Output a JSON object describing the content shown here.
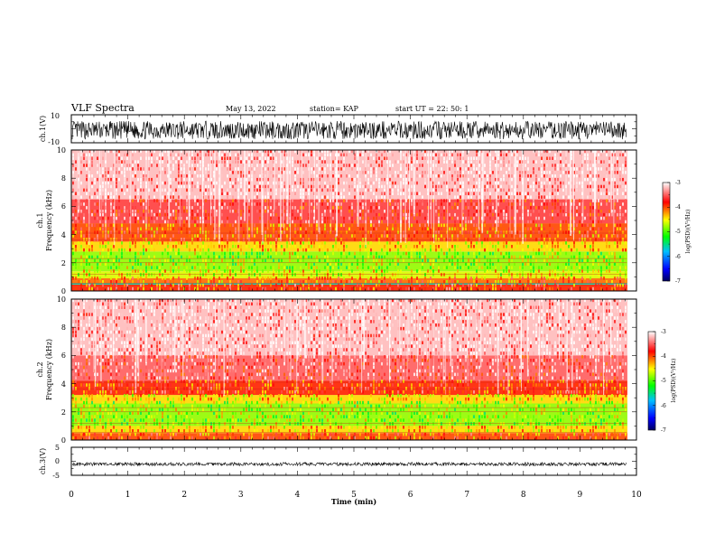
{
  "header": {
    "title": "VLF Spectra",
    "date": "May 13, 2022",
    "station": "station= KAP",
    "start": "start  UT =   22: 50: 1"
  },
  "chart_data": [
    {
      "type": "line",
      "name": "ch1-waveform",
      "ylabel": "ch.1(V)",
      "ylim": [
        -10,
        10
      ],
      "yticks": [
        "10",
        "-10"
      ],
      "xlim": [
        0,
        10
      ],
      "x_end": 9.83,
      "amplitude": 6.5,
      "offset": -1.0
    },
    {
      "type": "heatmap",
      "name": "ch1-spectrogram",
      "ylabel": "ch.1",
      "ylabel2": "Frequency (kHz)",
      "ylim": [
        0,
        10
      ],
      "yticks": [
        "0",
        "2",
        "4",
        "6",
        "8",
        "10"
      ],
      "xlim": [
        0,
        10
      ],
      "x_end": 9.83,
      "bands": [
        {
          "from": 0.0,
          "to": 0.45,
          "level": -3.9
        },
        {
          "from": 0.45,
          "to": 0.55,
          "level": -5.6
        },
        {
          "from": 0.55,
          "to": 0.9,
          "level": -4.1
        },
        {
          "from": 0.9,
          "to": 1.4,
          "level": -4.6
        },
        {
          "from": 1.4,
          "to": 2.8,
          "level": -4.8
        },
        {
          "from": 2.8,
          "to": 3.5,
          "level": -4.4
        },
        {
          "from": 3.5,
          "to": 4.8,
          "level": -4.0
        },
        {
          "from": 4.8,
          "to": 6.5,
          "level": -3.6
        },
        {
          "from": 6.5,
          "to": 10.0,
          "level": -3.2
        }
      ]
    },
    {
      "type": "heatmap",
      "name": "ch2-spectrogram",
      "ylabel": "ch.2",
      "ylabel2": "Frequency (kHz)",
      "ylim": [
        0,
        10
      ],
      "yticks": [
        "0",
        "2",
        "4",
        "6",
        "8",
        "10"
      ],
      "xlim": [
        0,
        10
      ],
      "x_end": 9.83,
      "bands": [
        {
          "from": 0.0,
          "to": 0.5,
          "level": -4.0
        },
        {
          "from": 0.5,
          "to": 1.0,
          "level": -4.4
        },
        {
          "from": 1.0,
          "to": 2.6,
          "level": -4.8
        },
        {
          "from": 2.6,
          "to": 3.2,
          "level": -4.4
        },
        {
          "from": 3.2,
          "to": 4.2,
          "level": -3.9
        },
        {
          "from": 4.2,
          "to": 6.0,
          "level": -3.5
        },
        {
          "from": 6.0,
          "to": 10.0,
          "level": -3.2
        }
      ]
    },
    {
      "type": "line",
      "name": "ch3-waveform",
      "ylabel": "ch.3(V)",
      "ylim": [
        -5,
        5
      ],
      "yticks": [
        "5",
        "0",
        "-5"
      ],
      "xlim": [
        0,
        10
      ],
      "x_end": 9.83,
      "amplitude": 0.6,
      "offset": -1.0,
      "xlabel": "Time (min)",
      "xticks": [
        "0",
        "1",
        "2",
        "3",
        "4",
        "5",
        "6",
        "7",
        "8",
        "9",
        "10"
      ]
    }
  ],
  "colorbar": {
    "label": "log(PSD)(V²/Hz)",
    "range": [
      -7,
      -3
    ],
    "ticks": [
      "-3",
      "-4",
      "-5",
      "-6",
      "-7"
    ],
    "colors": [
      "#000060",
      "#0000ff",
      "#00c0ff",
      "#00ff00",
      "#ffff00",
      "#ff0000",
      "#ffffff"
    ]
  }
}
